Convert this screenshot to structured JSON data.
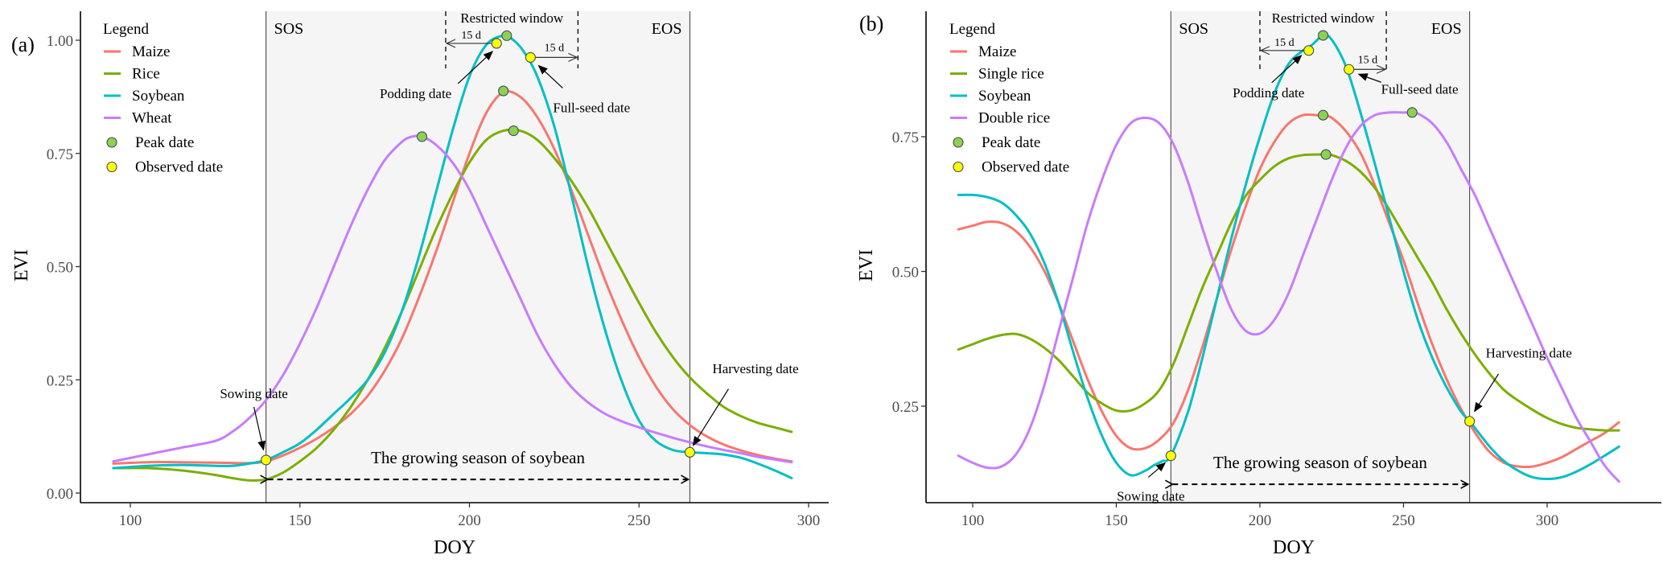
{
  "chart_data": [
    {
      "type": "line",
      "panel_label": "(a)",
      "xlabel": "DOY",
      "ylabel": "EVI",
      "xlim": [
        85,
        306
      ],
      "ylim": [
        -0.02,
        1.03
      ],
      "xticks": [
        100,
        150,
        200,
        250,
        300
      ],
      "xtick_labels": [
        "100",
        "150",
        "200",
        "250",
        "300"
      ],
      "yticks": [
        0,
        0.25,
        0.5,
        0.75,
        1.0
      ],
      "ytick_labels": [
        "0.00",
        "0.25",
        "0.50",
        "0.75",
        "1.00"
      ],
      "grid": false,
      "legend": {
        "title": "Legend",
        "placement": "top-left",
        "entries": [
          {
            "label": "Maize",
            "kind": "line",
            "color": "#f8766d"
          },
          {
            "label": "Rice",
            "kind": "line",
            "color": "#7cae00"
          },
          {
            "label": "Soybean",
            "kind": "line",
            "color": "#00bfc4"
          },
          {
            "label": "Wheat",
            "kind": "line",
            "color": "#c77cff"
          },
          {
            "label": "Peak date",
            "kind": "point",
            "color": "#8fd14f"
          },
          {
            "label": "Observed date",
            "kind": "point",
            "color": "#ffff00"
          }
        ]
      },
      "season": {
        "sos": 140,
        "eos": 265,
        "sos_label": "SOS",
        "eos_label": "EOS",
        "shade_color": "#f5f5f5",
        "span_label": "The growing season of soybean",
        "arrow_y": 0.03
      },
      "restricted_window": {
        "label": "Restricted window",
        "start": 193,
        "end": 232,
        "left_gap_label": "15 d",
        "right_gap_label": "15 d"
      },
      "series": [
        {
          "name": "Maize",
          "color": "#f8766d",
          "x": [
            95,
            105,
            115,
            125,
            135,
            140,
            145,
            150,
            155,
            160,
            165,
            170,
            175,
            180,
            185,
            190,
            195,
            200,
            205,
            210,
            215,
            220,
            225,
            230,
            235,
            240,
            245,
            250,
            255,
            260,
            265,
            270,
            275,
            280,
            285,
            290,
            295
          ],
          "y": [
            0.065,
            0.068,
            0.068,
            0.067,
            0.066,
            0.07,
            0.083,
            0.1,
            0.12,
            0.145,
            0.175,
            0.215,
            0.27,
            0.34,
            0.43,
            0.53,
            0.64,
            0.75,
            0.84,
            0.885,
            0.875,
            0.83,
            0.76,
            0.67,
            0.57,
            0.47,
            0.38,
            0.3,
            0.235,
            0.185,
            0.15,
            0.125,
            0.107,
            0.094,
            0.084,
            0.076,
            0.07
          ]
        },
        {
          "name": "Rice",
          "color": "#7cae00",
          "x": [
            95,
            105,
            115,
            125,
            130,
            135,
            140,
            145,
            150,
            155,
            160,
            165,
            170,
            175,
            180,
            185,
            190,
            195,
            200,
            205,
            210,
            215,
            220,
            225,
            230,
            235,
            240,
            245,
            250,
            255,
            260,
            265,
            270,
            275,
            280,
            285,
            290,
            295
          ],
          "y": [
            0.055,
            0.055,
            0.05,
            0.04,
            0.033,
            0.028,
            0.03,
            0.045,
            0.07,
            0.1,
            0.14,
            0.19,
            0.25,
            0.32,
            0.4,
            0.49,
            0.58,
            0.66,
            0.73,
            0.78,
            0.8,
            0.8,
            0.78,
            0.74,
            0.69,
            0.63,
            0.56,
            0.49,
            0.42,
            0.355,
            0.3,
            0.255,
            0.22,
            0.19,
            0.17,
            0.155,
            0.145,
            0.135
          ]
        },
        {
          "name": "Soybean",
          "color": "#00bfc4",
          "x": [
            95,
            105,
            115,
            125,
            130,
            135,
            140,
            145,
            150,
            155,
            160,
            165,
            170,
            175,
            180,
            185,
            190,
            195,
            200,
            205,
            210,
            213,
            216,
            220,
            225,
            230,
            235,
            240,
            245,
            250,
            255,
            260,
            265,
            270,
            275,
            280,
            285,
            290,
            295
          ],
          "y": [
            0.055,
            0.06,
            0.062,
            0.06,
            0.06,
            0.065,
            0.073,
            0.09,
            0.11,
            0.14,
            0.175,
            0.21,
            0.25,
            0.31,
            0.4,
            0.52,
            0.66,
            0.8,
            0.92,
            0.99,
            1.01,
            1.0,
            0.975,
            0.92,
            0.81,
            0.66,
            0.5,
            0.36,
            0.245,
            0.16,
            0.115,
            0.095,
            0.09,
            0.088,
            0.085,
            0.078,
            0.065,
            0.05,
            0.033
          ]
        },
        {
          "name": "Wheat",
          "color": "#c77cff",
          "x": [
            95,
            105,
            115,
            125,
            130,
            135,
            140,
            145,
            150,
            155,
            160,
            165,
            170,
            175,
            180,
            183,
            186,
            190,
            195,
            200,
            205,
            210,
            215,
            220,
            225,
            230,
            235,
            240,
            245,
            250,
            255,
            260,
            265,
            270,
            275,
            280,
            285,
            290,
            295
          ],
          "y": [
            0.07,
            0.085,
            0.1,
            0.115,
            0.135,
            0.165,
            0.205,
            0.26,
            0.33,
            0.41,
            0.5,
            0.59,
            0.67,
            0.735,
            0.775,
            0.787,
            0.787,
            0.77,
            0.73,
            0.67,
            0.59,
            0.51,
            0.43,
            0.35,
            0.285,
            0.235,
            0.2,
            0.175,
            0.158,
            0.145,
            0.133,
            0.122,
            0.112,
            0.103,
            0.095,
            0.088,
            0.08,
            0.074,
            0.068
          ]
        }
      ],
      "peak_points": [
        {
          "series": "Wheat",
          "x": 186,
          "y": 0.787
        },
        {
          "series": "Maize",
          "x": 210,
          "y": 0.888
        },
        {
          "series": "Soybean",
          "x": 211,
          "y": 1.01
        },
        {
          "series": "Rice",
          "x": 213,
          "y": 0.8
        }
      ],
      "observed_points": [
        {
          "label": "Sowing date",
          "x": 140,
          "y": 0.073
        },
        {
          "label": "Podding date",
          "x": 208,
          "y": 0.993
        },
        {
          "label": "Full-seed date",
          "x": 218,
          "y": 0.962
        },
        {
          "label": "Harvesting date",
          "x": 265,
          "y": 0.09
        }
      ]
    },
    {
      "type": "line",
      "panel_label": "(b)",
      "xlabel": "DOY",
      "ylabel": "EVI",
      "xlim": [
        84,
        336
      ],
      "ylim": [
        0.07,
        0.98
      ],
      "xticks": [
        100,
        150,
        200,
        250,
        300
      ],
      "xtick_labels": [
        "100",
        "150",
        "200",
        "250",
        "300"
      ],
      "yticks": [
        0.25,
        0.5,
        0.75
      ],
      "ytick_labels": [
        "0.25",
        "0.50",
        "0.75"
      ],
      "grid": false,
      "legend": {
        "title": "Legend",
        "placement": "top-left",
        "entries": [
          {
            "label": "Maize",
            "kind": "line",
            "color": "#f8766d"
          },
          {
            "label": "Single rice",
            "kind": "line",
            "color": "#7cae00"
          },
          {
            "label": "Soybean",
            "kind": "line",
            "color": "#00bfc4"
          },
          {
            "label": "Double rice",
            "kind": "line",
            "color": "#c77cff"
          },
          {
            "label": "Peak date",
            "kind": "point",
            "color": "#8fd14f"
          },
          {
            "label": "Observed date",
            "kind": "point",
            "color": "#ffff00"
          }
        ]
      },
      "season": {
        "sos": 169,
        "eos": 273,
        "sos_label": "SOS",
        "eos_label": "EOS",
        "shade_color": "#f5f5f5",
        "span_label": "The growing season of soybean",
        "arrow_y": 0.105
      },
      "restricted_window": {
        "label": "Restricted window",
        "start": 200,
        "end": 244,
        "left_gap_label": "15 d",
        "right_gap_label": "15 d"
      },
      "series": [
        {
          "name": "Maize",
          "color": "#f8766d",
          "x": [
            95,
            100,
            105,
            110,
            115,
            120,
            125,
            130,
            135,
            140,
            145,
            150,
            155,
            160,
            165,
            170,
            175,
            180,
            185,
            190,
            195,
            200,
            205,
            210,
            215,
            220,
            222,
            225,
            230,
            235,
            240,
            245,
            250,
            255,
            260,
            265,
            270,
            275,
            280,
            285,
            290,
            295,
            300,
            305,
            310,
            315,
            320,
            325
          ],
          "y": [
            0.578,
            0.585,
            0.592,
            0.59,
            0.575,
            0.545,
            0.5,
            0.44,
            0.37,
            0.3,
            0.24,
            0.195,
            0.172,
            0.172,
            0.188,
            0.22,
            0.28,
            0.36,
            0.45,
            0.54,
            0.62,
            0.69,
            0.74,
            0.775,
            0.79,
            0.79,
            0.79,
            0.785,
            0.76,
            0.72,
            0.66,
            0.59,
            0.52,
            0.44,
            0.365,
            0.3,
            0.245,
            0.2,
            0.165,
            0.145,
            0.138,
            0.138,
            0.145,
            0.155,
            0.17,
            0.185,
            0.2,
            0.22
          ]
        },
        {
          "name": "Single rice",
          "color": "#7cae00",
          "x": [
            95,
            100,
            105,
            110,
            115,
            120,
            125,
            130,
            135,
            140,
            145,
            150,
            155,
            160,
            165,
            170,
            175,
            180,
            185,
            190,
            195,
            200,
            205,
            210,
            215,
            220,
            223,
            225,
            230,
            235,
            240,
            245,
            250,
            255,
            260,
            265,
            270,
            275,
            280,
            285,
            290,
            295,
            300,
            305,
            310,
            315,
            320,
            325
          ],
          "y": [
            0.355,
            0.365,
            0.375,
            0.382,
            0.384,
            0.375,
            0.358,
            0.335,
            0.305,
            0.275,
            0.255,
            0.242,
            0.242,
            0.255,
            0.28,
            0.33,
            0.4,
            0.47,
            0.53,
            0.59,
            0.64,
            0.67,
            0.695,
            0.71,
            0.716,
            0.717,
            0.717,
            0.716,
            0.705,
            0.685,
            0.655,
            0.615,
            0.57,
            0.525,
            0.48,
            0.43,
            0.385,
            0.345,
            0.31,
            0.28,
            0.26,
            0.243,
            0.228,
            0.217,
            0.21,
            0.207,
            0.205,
            0.205
          ]
        },
        {
          "name": "Soybean",
          "color": "#00bfc4",
          "x": [
            95,
            100,
            105,
            110,
            115,
            120,
            125,
            130,
            135,
            140,
            145,
            150,
            155,
            160,
            163,
            166,
            169,
            175,
            180,
            185,
            190,
            195,
            200,
            205,
            210,
            215,
            218,
            222,
            225,
            230,
            235,
            240,
            245,
            250,
            255,
            260,
            265,
            270,
            273,
            280,
            285,
            290,
            295,
            300,
            305,
            310,
            315,
            320,
            325
          ],
          "y": [
            0.642,
            0.642,
            0.638,
            0.628,
            0.605,
            0.57,
            0.515,
            0.44,
            0.35,
            0.265,
            0.195,
            0.145,
            0.122,
            0.13,
            0.14,
            0.148,
            0.158,
            0.24,
            0.34,
            0.45,
            0.56,
            0.66,
            0.75,
            0.83,
            0.885,
            0.91,
            0.92,
            0.938,
            0.93,
            0.88,
            0.795,
            0.7,
            0.6,
            0.5,
            0.41,
            0.34,
            0.285,
            0.24,
            0.222,
            0.175,
            0.148,
            0.13,
            0.118,
            0.115,
            0.118,
            0.128,
            0.142,
            0.158,
            0.175
          ]
        },
        {
          "name": "Double rice",
          "color": "#c77cff",
          "x": [
            95,
            100,
            105,
            110,
            115,
            120,
            125,
            130,
            135,
            140,
            145,
            150,
            155,
            160,
            165,
            170,
            175,
            180,
            185,
            190,
            195,
            200,
            205,
            210,
            215,
            220,
            225,
            230,
            235,
            240,
            245,
            250,
            253,
            255,
            260,
            265,
            270,
            275,
            280,
            285,
            290,
            295,
            300,
            305,
            310,
            315,
            320,
            325
          ],
          "y": [
            0.158,
            0.145,
            0.136,
            0.138,
            0.16,
            0.21,
            0.29,
            0.39,
            0.49,
            0.59,
            0.67,
            0.735,
            0.775,
            0.785,
            0.775,
            0.735,
            0.665,
            0.58,
            0.5,
            0.43,
            0.39,
            0.385,
            0.41,
            0.46,
            0.53,
            0.6,
            0.67,
            0.73,
            0.77,
            0.79,
            0.795,
            0.795,
            0.795,
            0.793,
            0.775,
            0.74,
            0.69,
            0.64,
            0.58,
            0.52,
            0.46,
            0.4,
            0.34,
            0.285,
            0.23,
            0.185,
            0.14,
            0.11
          ]
        }
      ],
      "peak_points": [
        {
          "series": "Double rice",
          "x": 253,
          "y": 0.795
        },
        {
          "series": "Maize",
          "x": 222,
          "y": 0.79
        },
        {
          "series": "Soybean",
          "x": 222,
          "y": 0.938
        },
        {
          "series": "Single rice",
          "x": 223,
          "y": 0.717
        }
      ],
      "observed_points": [
        {
          "label": "Sowing date",
          "x": 169,
          "y": 0.158
        },
        {
          "label": "Podding date",
          "x": 217,
          "y": 0.91
        },
        {
          "label": "Full-seed date",
          "x": 231,
          "y": 0.875
        },
        {
          "label": "Harvesting date",
          "x": 273,
          "y": 0.222
        }
      ]
    }
  ]
}
